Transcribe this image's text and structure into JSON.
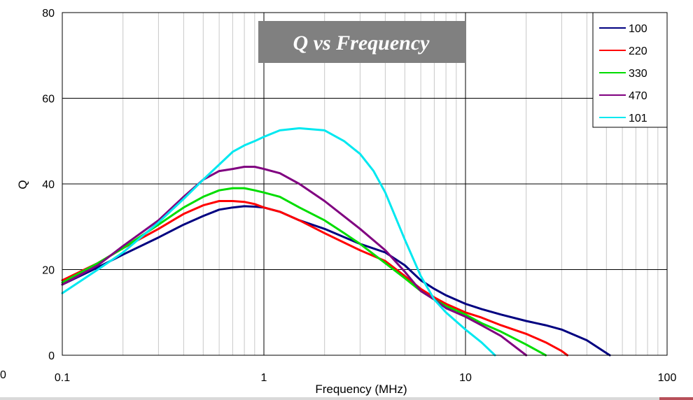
{
  "chart_data": {
    "type": "line",
    "title": "Q vs Frequency",
    "xlabel": "Frequency (MHz)",
    "ylabel": "Q",
    "x_scale": "log",
    "xlim": [
      0.1,
      100
    ],
    "ylim": [
      0,
      80
    ],
    "x_ticks": [
      "0.1",
      "1",
      "10",
      "100"
    ],
    "y_ticks": [
      "0",
      "20",
      "40",
      "60",
      "80"
    ],
    "grid": true,
    "legend_position": "top-right",
    "series": [
      {
        "name": "100",
        "color": "#000080",
        "x": [
          0.1,
          0.15,
          0.2,
          0.3,
          0.4,
          0.5,
          0.6,
          0.7,
          0.8,
          0.9,
          1,
          1.2,
          1.5,
          2,
          3,
          4,
          5,
          6,
          7,
          8,
          10,
          12,
          15,
          20,
          25,
          30,
          40,
          50,
          52
        ],
        "y": [
          16.5,
          20.5,
          23.5,
          27.5,
          30.5,
          32.5,
          34,
          34.5,
          34.8,
          34.7,
          34.5,
          33.5,
          31.5,
          29.5,
          26,
          24,
          21,
          17.5,
          15.5,
          14,
          12,
          10.8,
          9.5,
          8,
          7,
          6,
          3.5,
          0.5,
          0
        ]
      },
      {
        "name": "220",
        "color": "#ff0000",
        "x": [
          0.1,
          0.15,
          0.2,
          0.3,
          0.4,
          0.5,
          0.6,
          0.7,
          0.8,
          0.9,
          1,
          1.2,
          1.5,
          2,
          3,
          4,
          5,
          6,
          7,
          8,
          10,
          12,
          15,
          20,
          25,
          30,
          32
        ],
        "y": [
          17.5,
          21.5,
          25,
          29.5,
          33,
          35,
          36,
          36,
          35.8,
          35.3,
          34.5,
          33.5,
          31.5,
          28.5,
          24.5,
          22,
          18.5,
          15.5,
          13.5,
          12,
          10,
          8.8,
          7,
          5,
          3,
          1,
          0
        ]
      },
      {
        "name": "330",
        "color": "#00dd00",
        "x": [
          0.1,
          0.15,
          0.2,
          0.3,
          0.4,
          0.5,
          0.6,
          0.7,
          0.8,
          0.9,
          1,
          1.2,
          1.5,
          2,
          2.5,
          3,
          4,
          5,
          6,
          7,
          8,
          10,
          12,
          15,
          20,
          25
        ],
        "y": [
          17,
          21.5,
          25,
          30.5,
          34.5,
          37,
          38.5,
          39,
          39,
          38.5,
          38,
          37,
          34.5,
          31.5,
          28.5,
          26,
          21.5,
          18,
          15,
          13,
          11.5,
          9.5,
          7.5,
          5.5,
          2.5,
          0
        ]
      },
      {
        "name": "470",
        "color": "#800080",
        "x": [
          0.1,
          0.15,
          0.2,
          0.3,
          0.4,
          0.5,
          0.6,
          0.7,
          0.8,
          0.9,
          1,
          1.2,
          1.5,
          2,
          3,
          4,
          5,
          6,
          7,
          8,
          10,
          12,
          15,
          20
        ],
        "y": [
          16.5,
          21,
          25.5,
          31.5,
          37,
          41,
          43,
          43.5,
          44,
          44,
          43.5,
          42.5,
          40,
          36,
          29.5,
          24.5,
          19.5,
          15,
          13,
          11,
          9,
          7,
          4.5,
          0
        ]
      },
      {
        "name": "101",
        "color": "#00e8f0",
        "x": [
          0.1,
          0.15,
          0.2,
          0.3,
          0.4,
          0.5,
          0.6,
          0.7,
          0.8,
          0.9,
          1,
          1.2,
          1.5,
          2,
          2.5,
          3,
          3.5,
          4,
          5,
          6,
          7,
          8,
          10,
          12,
          14
        ],
        "y": [
          14.5,
          20,
          24,
          31,
          36.5,
          41,
          44.5,
          47.5,
          49,
          50,
          51,
          52.5,
          53,
          52.5,
          50,
          47,
          43,
          38,
          27,
          18.5,
          13,
          10,
          6,
          3,
          0
        ]
      }
    ]
  },
  "left_cutoff_label": "0"
}
